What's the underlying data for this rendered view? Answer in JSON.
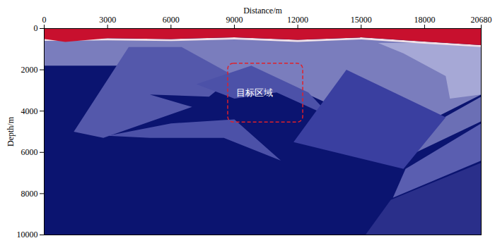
{
  "chart_data": {
    "type": "polygon",
    "x_label": "Distance/m",
    "y_label": "Depth/m",
    "xlim": [
      0,
      20680
    ],
    "xticks": [
      0,
      3000,
      6000,
      9000,
      12000,
      15000,
      18000,
      20680
    ],
    "ylim": [
      0,
      10000
    ],
    "yticks": [
      0,
      2000,
      4000,
      6000,
      8000,
      10000
    ],
    "regions": [
      {
        "color": "#0b1470",
        "points": [
          [
            0,
            0
          ],
          [
            20680,
            0
          ],
          [
            20680,
            10000
          ],
          [
            0,
            10000
          ]
        ]
      },
      {
        "color": "#7a7dbd",
        "points": [
          [
            0,
            550
          ],
          [
            3000,
            520
          ],
          [
            6000,
            560
          ],
          [
            9000,
            480
          ],
          [
            12000,
            600
          ],
          [
            15000,
            480
          ],
          [
            18000,
            680
          ],
          [
            20680,
            850
          ],
          [
            20680,
            3200
          ],
          [
            16800,
            5200
          ],
          [
            12500,
            3200
          ],
          [
            9800,
            1900
          ],
          [
            7000,
            3000
          ],
          [
            4000,
            1800
          ],
          [
            0,
            1800
          ]
        ]
      },
      {
        "color": "#a6a8d6",
        "points": [
          [
            15800,
            700
          ],
          [
            18000,
            700
          ],
          [
            20680,
            850
          ],
          [
            20680,
            3200
          ],
          [
            19200,
            3400
          ],
          [
            19000,
            2300
          ],
          [
            17000,
            1200
          ]
        ]
      },
      {
        "color": "#6b6fb5",
        "points": [
          [
            20680,
            3300
          ],
          [
            20680,
            4500
          ],
          [
            17600,
            6000
          ],
          [
            17200,
            5300
          ]
        ]
      },
      {
        "color": "#5a5eb0",
        "points": [
          [
            20680,
            4600
          ],
          [
            20680,
            6400
          ],
          [
            16500,
            8200
          ],
          [
            17100,
            6800
          ]
        ]
      },
      {
        "color": "#2a2f8a",
        "points": [
          [
            20680,
            6500
          ],
          [
            20680,
            10000
          ],
          [
            15200,
            10000
          ],
          [
            16400,
            8300
          ]
        ]
      },
      {
        "color": "#5458ab",
        "points": [
          [
            4000,
            900
          ],
          [
            6500,
            900
          ],
          [
            9000,
            2300
          ],
          [
            7800,
            3300
          ],
          [
            5000,
            3200
          ],
          [
            7000,
            3800
          ],
          [
            2800,
            5300
          ],
          [
            1400,
            5000
          ]
        ]
      },
      {
        "color": "#4c51a8",
        "points": [
          [
            3000,
            5200
          ],
          [
            6000,
            4600
          ],
          [
            9000,
            4400
          ],
          [
            11200,
            6400
          ],
          [
            8500,
            5300
          ],
          [
            5000,
            5300
          ]
        ]
      },
      {
        "color": "#4c51a8",
        "points": [
          [
            7200,
            2700
          ],
          [
            9800,
            1800
          ],
          [
            12500,
            3100
          ],
          [
            13600,
            4300
          ],
          [
            11000,
            3100
          ],
          [
            9000,
            3400
          ]
        ]
      },
      {
        "color": "#3a3fa0",
        "points": [
          [
            14300,
            2000
          ],
          [
            19000,
            4300
          ],
          [
            17000,
            6800
          ],
          [
            11800,
            5500
          ]
        ]
      },
      {
        "color": "#efdfe6",
        "points": [
          [
            0,
            500
          ],
          [
            3000,
            470
          ],
          [
            6000,
            510
          ],
          [
            9000,
            430
          ],
          [
            12000,
            550
          ],
          [
            15000,
            430
          ],
          [
            18000,
            630
          ],
          [
            20680,
            800
          ],
          [
            20680,
            900
          ],
          [
            18000,
            730
          ],
          [
            15000,
            530
          ],
          [
            12000,
            650
          ],
          [
            9000,
            530
          ],
          [
            6000,
            610
          ],
          [
            3000,
            570
          ],
          [
            0,
            600
          ]
        ]
      },
      {
        "color": "#c8102e",
        "points": [
          [
            0,
            0
          ],
          [
            20680,
            0
          ],
          [
            20680,
            800
          ],
          [
            18000,
            630
          ],
          [
            15000,
            430
          ],
          [
            12000,
            550
          ],
          [
            9000,
            430
          ],
          [
            6000,
            510
          ],
          [
            3000,
            470
          ],
          [
            1000,
            650
          ],
          [
            0,
            500
          ]
        ]
      }
    ],
    "box": {
      "x1": 8700,
      "x2": 12250,
      "y1": 1700,
      "y2": 4550,
      "color": "#e0202a",
      "line_style": "dashed"
    },
    "annotation": {
      "text": "目标区域",
      "x": 9970,
      "y": 3120,
      "color": "#ffffff"
    }
  }
}
